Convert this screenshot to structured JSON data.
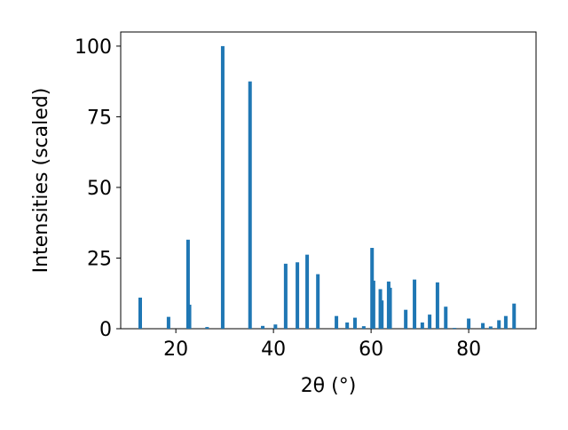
{
  "chart_data": {
    "type": "bar",
    "x_label": "2θ (°)",
    "y_label": "Intensities (scaled)",
    "x": [
      12.7,
      18.5,
      22.5,
      22.8,
      26.4,
      29.6,
      35.2,
      37.8,
      40.4,
      42.5,
      44.9,
      46.9,
      49.1,
      52.9,
      55.1,
      56.7,
      58.5,
      60.2,
      60.5,
      61.9,
      62.2,
      63.6,
      63.9,
      67.1,
      68.9,
      70.5,
      72.0,
      73.6,
      75.3,
      77.1,
      80.0,
      82.9,
      84.5,
      86.2,
      87.6,
      89.3
    ],
    "values": [
      11,
      4.2,
      31.5,
      8.5,
      0.6,
      100,
      87.5,
      1,
      1.5,
      23,
      23.5,
      26.2,
      19.3,
      4.5,
      2.2,
      3.9,
      0.9,
      28.6,
      17,
      14,
      10,
      16.7,
      14.5,
      6.7,
      17.4,
      2.2,
      5,
      16.4,
      7.8,
      0.3,
      3.6,
      2,
      0.8,
      3,
      4.5,
      8.9
    ],
    "color": "#1f77b4",
    "xlim": [
      8.7,
      93.8
    ],
    "xticks": [
      20,
      40,
      60,
      80
    ],
    "ylim": [
      0,
      105
    ],
    "yticks": [
      0,
      25,
      50,
      75,
      100
    ]
  }
}
